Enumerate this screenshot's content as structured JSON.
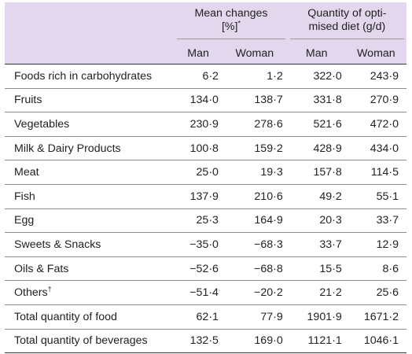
{
  "header": {
    "group1": {
      "line1": "Mean changes",
      "line2": "[%]",
      "mark": "*"
    },
    "group2": {
      "line1": "Quantity of opti-",
      "line2": "mised diet (g/d)"
    },
    "subheads": [
      "Man",
      "Woman",
      "Man",
      "Woman"
    ]
  },
  "rows": [
    {
      "food": "Foods rich in carbohydrates",
      "mark": "",
      "v": [
        "6·2",
        "1·2",
        "322·0",
        "243·9"
      ]
    },
    {
      "food": "Fruits",
      "mark": "",
      "v": [
        "134·0",
        "138·7",
        "331·8",
        "270·9"
      ]
    },
    {
      "food": "Vegetables",
      "mark": "",
      "v": [
        "230·9",
        "278·6",
        "521·6",
        "472·0"
      ]
    },
    {
      "food": "Milk & Dairy Products",
      "mark": "",
      "v": [
        "100·8",
        "159·2",
        "428·9",
        "434·0"
      ]
    },
    {
      "food": "Meat",
      "mark": "",
      "v": [
        "25·0",
        "19·3",
        "157·8",
        "114·5"
      ]
    },
    {
      "food": "Fish",
      "mark": "",
      "v": [
        "137·9",
        "210·6",
        "49·2",
        "55·1"
      ]
    },
    {
      "food": "Egg",
      "mark": "",
      "v": [
        "25·3",
        "164·9",
        "20·3",
        "33·7"
      ]
    },
    {
      "food": "Sweets & Snacks",
      "mark": "",
      "v": [
        "−35·0",
        "−68·3",
        "33·7",
        "12·9"
      ]
    },
    {
      "food": "Oils & Fats",
      "mark": "",
      "v": [
        "−52·6",
        "−68·8",
        "15·5",
        "8·6"
      ]
    },
    {
      "food": "Others",
      "mark": "†",
      "v": [
        "−51·4",
        "−20·2",
        "21·2",
        "25·6"
      ]
    },
    {
      "food": "Total quantity of food",
      "mark": "",
      "v": [
        "62·1",
        "77·9",
        "1901·9",
        "1671·2"
      ]
    },
    {
      "food": "Total quantity of beverages",
      "mark": "",
      "v": [
        "132·5",
        "169·0",
        "1121·1",
        "1046·1"
      ]
    }
  ]
}
